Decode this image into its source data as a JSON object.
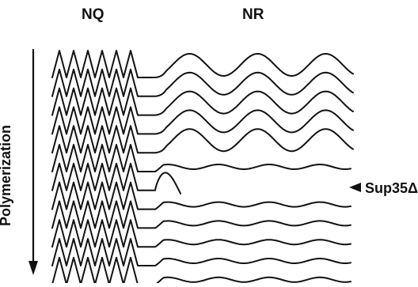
{
  "labels": {
    "nq": "NQ",
    "nr": "NR",
    "axis": "Polymerization",
    "mutant": "Sup35Δ"
  },
  "figure": {
    "stroke_color": "#111111",
    "background": "#ffffff",
    "total_strands": 12,
    "folded_nr_strands": 5,
    "truncated_strand_index": 6,
    "extended_nr_strands": 5,
    "nq_zigzag_peaks": 6,
    "arrow_direction": "down",
    "mutant_marker_icon": "left-pointing-triangle-icon"
  }
}
